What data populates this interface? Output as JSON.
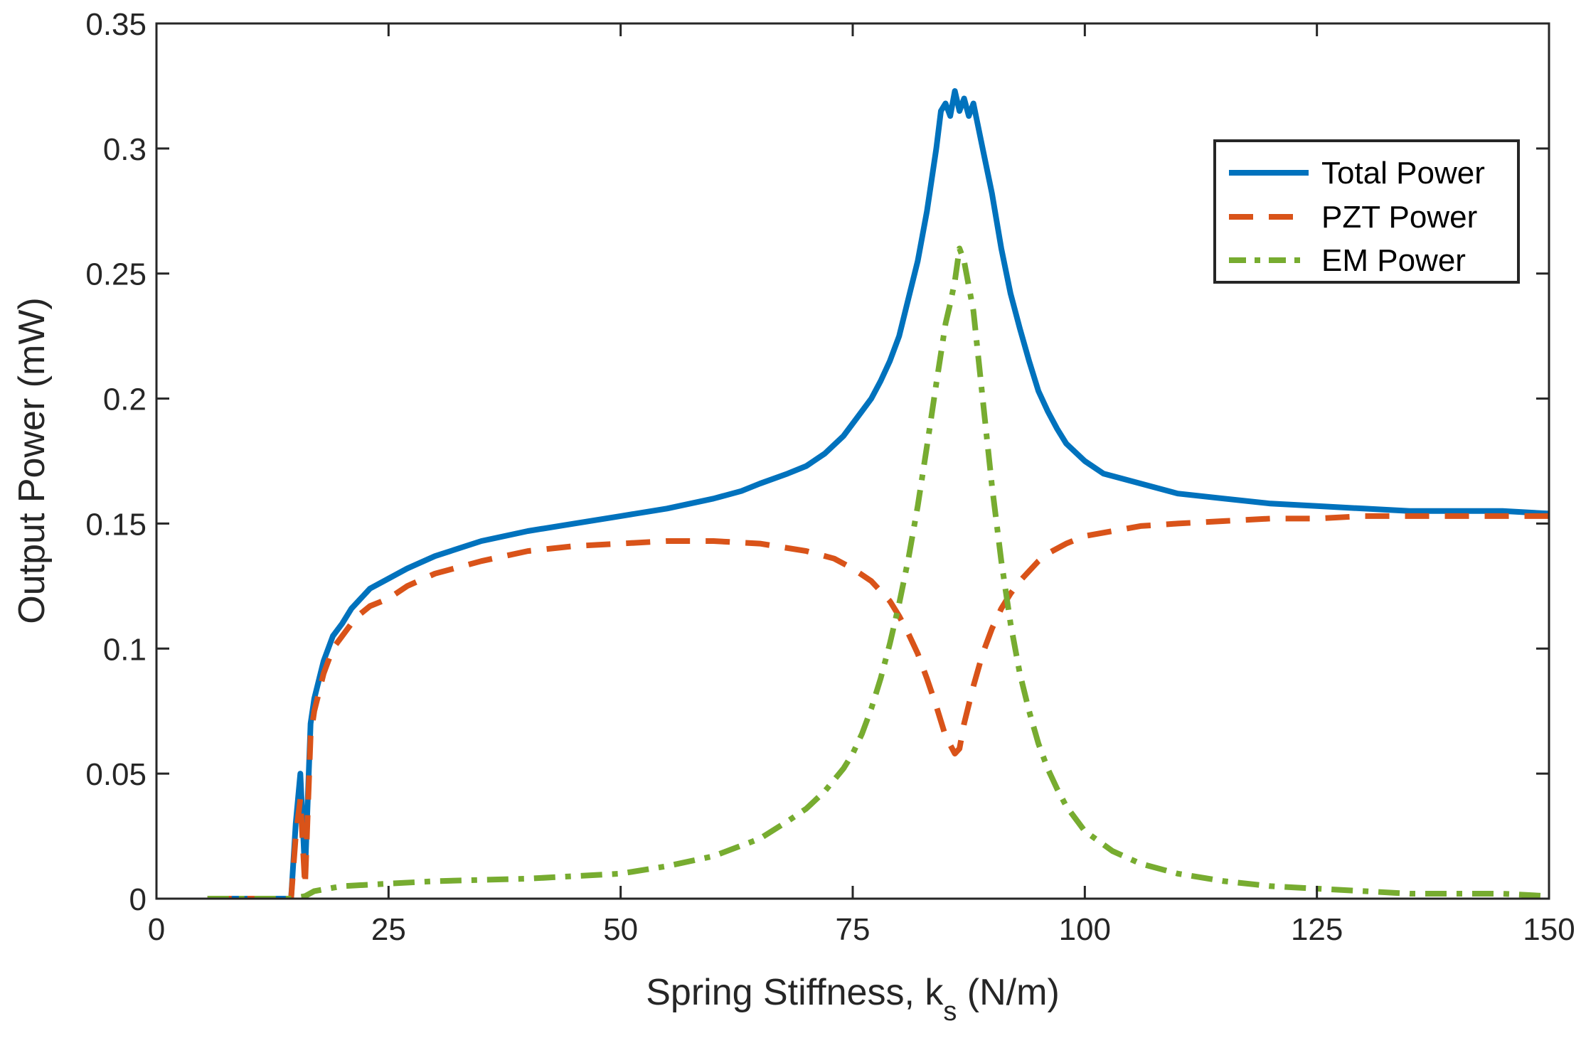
{
  "chart_data": {
    "type": "line",
    "title": "",
    "xlabel": "Spring Stiffness, k",
    "xlabel_subscript": "s",
    "xlabel_units": " (N/m)",
    "ylabel": "Output Power (mW)",
    "xlim": [
      0,
      150
    ],
    "ylim": [
      0,
      0.35
    ],
    "xticks": [
      0,
      25,
      50,
      75,
      100,
      125,
      150
    ],
    "xtick_labels": [
      "0",
      "25",
      "50",
      "75",
      "100",
      "125",
      "150"
    ],
    "yticks": [
      0,
      0.05,
      0.1,
      0.15,
      0.2,
      0.25,
      0.3,
      0.35
    ],
    "ytick_labels": [
      "0",
      "0.05",
      "0.1",
      "0.15",
      "0.2",
      "0.25",
      "0.3",
      "0.35"
    ],
    "grid": false,
    "legend_position": "top-right",
    "series": [
      {
        "name": "Total Power",
        "color": "#0072BD",
        "style": "solid",
        "x": [
          5.5,
          14.5,
          15.0,
          15.5,
          16.0,
          16.3,
          16.6,
          17,
          18,
          19,
          20,
          21,
          22,
          23,
          25,
          27,
          30,
          35,
          40,
          45,
          50,
          55,
          60,
          63,
          65,
          68,
          70,
          72,
          74,
          76,
          77,
          78,
          79,
          80,
          81,
          82,
          83,
          84,
          84.5,
          85,
          85.5,
          86,
          86.5,
          87,
          87.5,
          88,
          89,
          90,
          91,
          92,
          93,
          94,
          95,
          96,
          97,
          98,
          100,
          102,
          105,
          110,
          115,
          120,
          125,
          130,
          135,
          140,
          145,
          150
        ],
        "values": [
          0,
          0,
          0.03,
          0.05,
          0.01,
          0.04,
          0.07,
          0.08,
          0.095,
          0.105,
          0.11,
          0.116,
          0.12,
          0.124,
          0.128,
          0.132,
          0.137,
          0.143,
          0.147,
          0.15,
          0.153,
          0.156,
          0.16,
          0.163,
          0.166,
          0.17,
          0.173,
          0.178,
          0.185,
          0.195,
          0.2,
          0.207,
          0.215,
          0.225,
          0.24,
          0.255,
          0.275,
          0.3,
          0.315,
          0.318,
          0.313,
          0.323,
          0.315,
          0.32,
          0.313,
          0.318,
          0.3,
          0.282,
          0.26,
          0.242,
          0.228,
          0.215,
          0.203,
          0.195,
          0.188,
          0.182,
          0.175,
          0.17,
          0.167,
          0.162,
          0.16,
          0.158,
          0.157,
          0.156,
          0.155,
          0.155,
          0.155,
          0.154
        ]
      },
      {
        "name": "PZT Power",
        "color": "#D95319",
        "style": "dashed",
        "x": [
          5.5,
          14.5,
          15.0,
          15.5,
          16.0,
          16.3,
          16.6,
          17,
          18,
          19,
          20,
          21,
          22,
          23,
          25,
          27,
          30,
          35,
          40,
          45,
          50,
          55,
          60,
          65,
          70,
          73,
          75,
          77,
          79,
          80,
          81,
          82,
          83,
          84,
          85,
          86,
          86.5,
          87,
          88,
          89,
          90,
          91,
          92,
          93,
          94,
          95,
          96,
          98,
          100,
          103,
          106,
          110,
          115,
          120,
          125,
          130,
          135,
          140,
          145,
          150
        ],
        "values": [
          0,
          0,
          0.025,
          0.04,
          0.005,
          0.035,
          0.065,
          0.075,
          0.09,
          0.1,
          0.105,
          0.11,
          0.114,
          0.117,
          0.12,
          0.125,
          0.13,
          0.135,
          0.139,
          0.141,
          0.142,
          0.143,
          0.143,
          0.142,
          0.139,
          0.136,
          0.132,
          0.127,
          0.119,
          0.113,
          0.106,
          0.098,
          0.088,
          0.077,
          0.065,
          0.058,
          0.06,
          0.07,
          0.085,
          0.098,
          0.108,
          0.116,
          0.122,
          0.127,
          0.131,
          0.135,
          0.138,
          0.142,
          0.145,
          0.147,
          0.149,
          0.15,
          0.151,
          0.152,
          0.152,
          0.153,
          0.153,
          0.153,
          0.153,
          0.153
        ]
      },
      {
        "name": "EM Power",
        "color": "#77AC30",
        "style": "dashdot",
        "x": [
          5.5,
          14.5,
          16,
          17,
          20,
          25,
          30,
          40,
          50,
          55,
          60,
          65,
          68,
          70,
          72,
          74,
          75,
          76,
          77,
          78,
          79,
          80,
          81,
          82,
          83,
          84,
          85,
          85.5,
          86,
          86.5,
          87,
          88,
          89,
          90,
          91,
          92,
          93,
          94,
          95,
          96,
          97,
          98,
          100,
          103,
          106,
          110,
          115,
          120,
          125,
          130,
          135,
          140,
          145,
          150
        ],
        "values": [
          0,
          0,
          0.001,
          0.003,
          0.005,
          0.006,
          0.007,
          0.008,
          0.01,
          0.013,
          0.017,
          0.024,
          0.031,
          0.036,
          0.043,
          0.052,
          0.058,
          0.066,
          0.076,
          0.088,
          0.102,
          0.118,
          0.136,
          0.157,
          0.181,
          0.206,
          0.23,
          0.238,
          0.247,
          0.26,
          0.255,
          0.235,
          0.2,
          0.165,
          0.135,
          0.11,
          0.09,
          0.075,
          0.062,
          0.052,
          0.044,
          0.037,
          0.027,
          0.019,
          0.014,
          0.01,
          0.007,
          0.005,
          0.004,
          0.003,
          0.002,
          0.002,
          0.002,
          0.001
        ]
      }
    ]
  }
}
